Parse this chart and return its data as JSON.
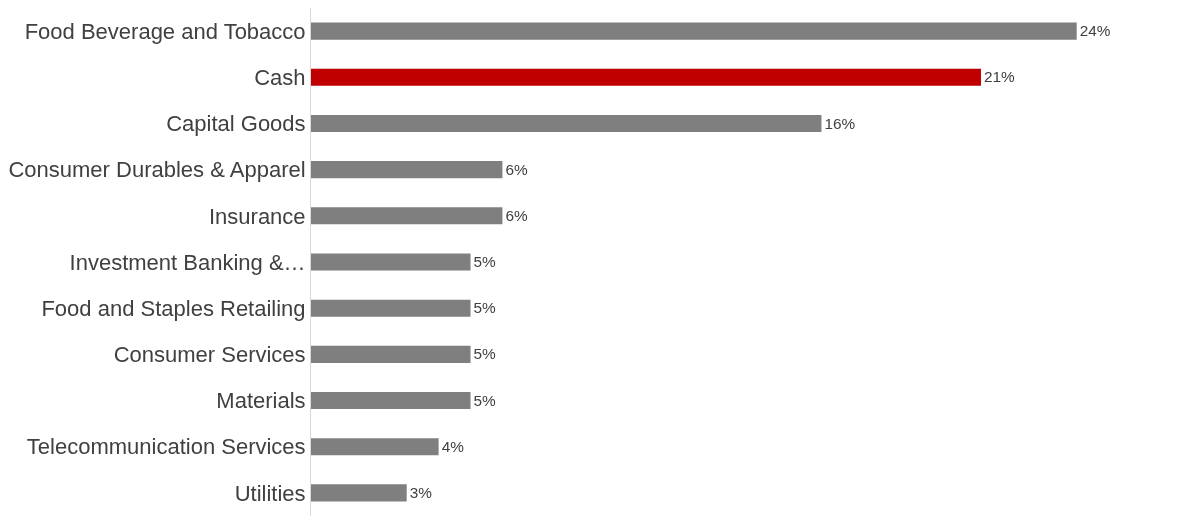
{
  "chart_data": {
    "type": "bar",
    "orientation": "horizontal",
    "categories": [
      "Food Beverage and Tobacco",
      "Cash",
      "Capital Goods",
      "Consumer Durables & Apparel",
      "Insurance",
      "Investment Banking &…",
      "Food and Staples Retailing",
      "Consumer Services",
      "Materials",
      "Telecommunication Services",
      "Utilities"
    ],
    "values": [
      24,
      21,
      16,
      6,
      6,
      5,
      5,
      5,
      5,
      4,
      3
    ],
    "value_labels": [
      "24%",
      "21%",
      "16%",
      "6%",
      "6%",
      "5%",
      "5%",
      "5%",
      "5%",
      "4%",
      "3%"
    ],
    "colors": [
      "#7f7f7f",
      "#c00000",
      "#7f7f7f",
      "#7f7f7f",
      "#7f7f7f",
      "#7f7f7f",
      "#7f7f7f",
      "#7f7f7f",
      "#7f7f7f",
      "#7f7f7f",
      "#7f7f7f"
    ],
    "tick_labels": "y"
  }
}
